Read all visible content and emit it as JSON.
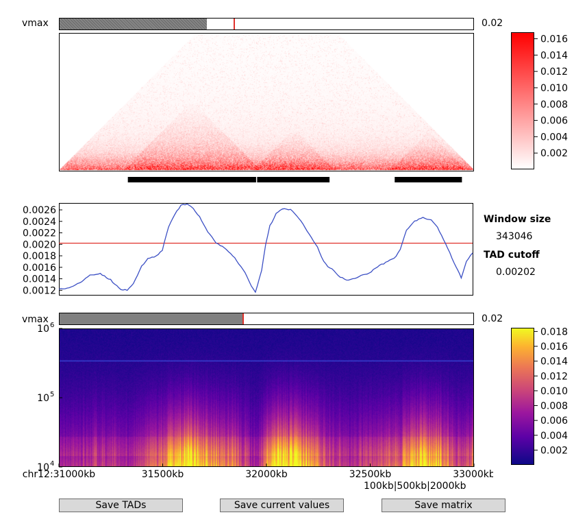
{
  "top_vmax": {
    "label": "vmax",
    "value_text": "0.02",
    "fraction": 0.356
  },
  "bottom_vmax": {
    "label": "vmax",
    "value_text": "0.02",
    "fraction": 0.356
  },
  "window_size": {
    "title": "Window size",
    "value": "343046"
  },
  "tad_cutoff": {
    "title": "TAD cutoff",
    "value": "0.00202"
  },
  "x_axis": {
    "ticks": [
      "chr12:31000kb",
      "31500kb",
      "32000kb",
      "32500kb",
      "33000kb"
    ],
    "tick_values_kb": [
      31000,
      31500,
      32000,
      32500,
      33000
    ],
    "sub_label": "100kb|500kb|2000kb"
  },
  "buttons": {
    "save_tads": "Save TADs",
    "save_current": "Save current values",
    "save_matrix": "Save matrix"
  },
  "chart_data": [
    {
      "type": "heatmap",
      "panel": "hic-matrix",
      "x_range_kb": [
        31000,
        33000
      ],
      "colormap": "white-red",
      "colorbar": {
        "ticks": [
          "0.002",
          "0.004",
          "0.006",
          "0.008",
          "0.010",
          "0.012",
          "0.014",
          "0.016"
        ],
        "tick_values": [
          0.002,
          0.004,
          0.006,
          0.008,
          0.01,
          0.012,
          0.014,
          0.016
        ],
        "range": [
          0,
          0.0168
        ]
      },
      "tads_kb": [
        [
          31330,
          31950
        ],
        [
          31955,
          32305
        ],
        [
          32620,
          32945
        ]
      ]
    },
    {
      "type": "line",
      "panel": "insulation-score",
      "x_range_kb": [
        31000,
        33000
      ],
      "ylim": [
        0.00112,
        0.00272
      ],
      "y_ticks": [
        "0.0012",
        "0.0014",
        "0.0016",
        "0.0018",
        "0.0020",
        "0.0022",
        "0.0024",
        "0.0026"
      ],
      "y_tick_values": [
        0.0012,
        0.0014,
        0.0016,
        0.0018,
        0.002,
        0.0022,
        0.0024,
        0.0026
      ],
      "cutoff": 0.00202,
      "series": [
        {
          "x": [
            31000,
            31050,
            31100,
            31150,
            31200,
            31250,
            31300,
            31330,
            31360,
            31400,
            31430,
            31470,
            31500,
            31530,
            31560,
            31590,
            31620,
            31650,
            31680,
            31720,
            31760,
            31800,
            31850,
            31900,
            31930,
            31950,
            31980,
            32000,
            32020,
            32050,
            32080,
            32120,
            32150,
            32180,
            32220,
            32250,
            32280,
            32300,
            32320,
            32350,
            32400,
            32450,
            32500,
            32550,
            32600,
            32620,
            32650,
            32680,
            32720,
            32760,
            32800,
            32830,
            32860,
            32890,
            32920,
            32945,
            32970,
            33000
          ],
          "values": [
            0.00122,
            0.00124,
            0.00133,
            0.00146,
            0.00149,
            0.00138,
            0.00121,
            0.0012,
            0.00131,
            0.00162,
            0.00175,
            0.00179,
            0.0019,
            0.0023,
            0.00252,
            0.00268,
            0.0027,
            0.00262,
            0.00248,
            0.00222,
            0.00203,
            0.00194,
            0.00176,
            0.0015,
            0.00128,
            0.00116,
            0.00155,
            0.002,
            0.00232,
            0.00253,
            0.00262,
            0.0026,
            0.0025,
            0.00235,
            0.00212,
            0.00195,
            0.0017,
            0.00161,
            0.00158,
            0.00145,
            0.00137,
            0.00144,
            0.0015,
            0.00163,
            0.00172,
            0.00175,
            0.0019,
            0.00225,
            0.0024,
            0.00247,
            0.00242,
            0.0023,
            0.00208,
            0.00185,
            0.0016,
            0.00142,
            0.0017,
            0.00185
          ]
        }
      ]
    },
    {
      "type": "heatmap",
      "panel": "multiscale-insulation",
      "x_range_kb": [
        31000,
        33000
      ],
      "y_scale": "log",
      "ylim": [
        10000,
        1000000
      ],
      "y_ticks": [
        10000,
        100000,
        1000000
      ],
      "window_line": 343046,
      "colormap": "plasma",
      "colorbar": {
        "ticks": [
          "0.002",
          "0.004",
          "0.006",
          "0.008",
          "0.010",
          "0.012",
          "0.014",
          "0.016",
          "0.018"
        ],
        "tick_values": [
          0.002,
          0.004,
          0.006,
          0.008,
          0.01,
          0.012,
          0.014,
          0.016,
          0.018
        ],
        "range": [
          0,
          0.0185
        ]
      }
    }
  ]
}
